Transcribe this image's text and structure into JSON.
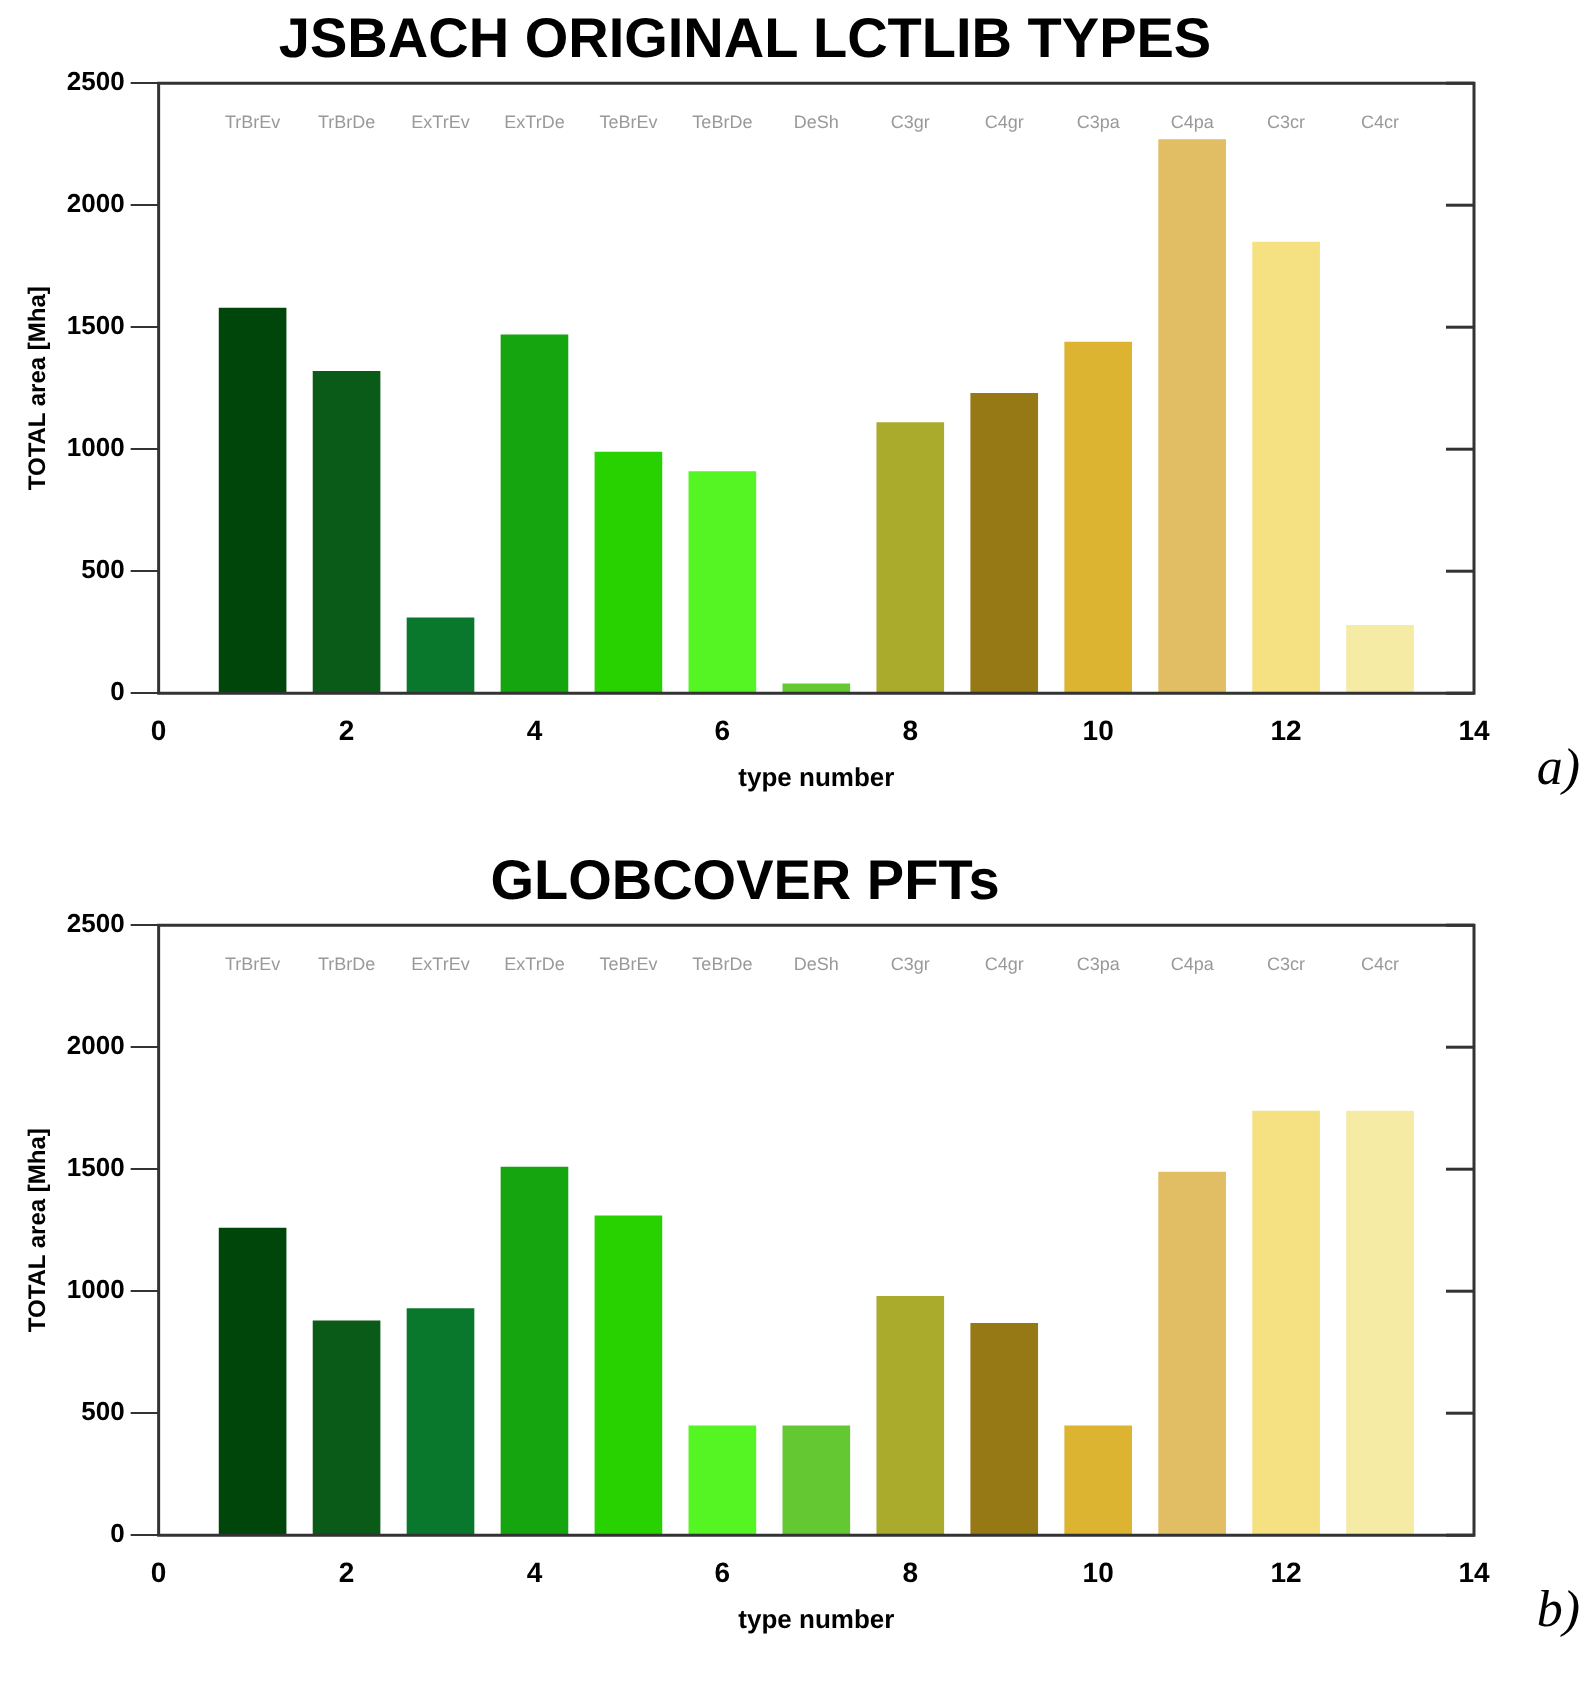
{
  "chart_data": [
    {
      "type": "bar",
      "title": "JSBACH ORIGINAL LCTLIB TYPES",
      "xlabel": "type number",
      "ylabel": "TOTAL area [Mha]",
      "x": [
        1,
        2,
        3,
        4,
        5,
        6,
        7,
        8,
        9,
        10,
        11,
        12,
        13
      ],
      "values": [
        1580,
        1320,
        310,
        1470,
        990,
        910,
        40,
        1110,
        1230,
        1440,
        2270,
        1850,
        280
      ],
      "colors": [
        "#00460a",
        "#0a5a18",
        "#0a782c",
        "#14a50f",
        "#28d200",
        "#55f523",
        "#64c832",
        "#aaaa2d",
        "#967814",
        "#dcb432",
        "#e1be64",
        "#f5e182",
        "#f5eba5"
      ],
      "xlim": [
        0,
        14
      ],
      "xticks": [
        0,
        2,
        4,
        6,
        8,
        10,
        12,
        14
      ],
      "ylim": [
        0,
        2500
      ],
      "yticks": [
        0,
        500,
        1000,
        1500,
        2000,
        2500
      ],
      "annotations": [
        "TrBrEv",
        "TrBrDe",
        "ExTrEv",
        "ExTrDe",
        "TeBrEv",
        "TeBrDe",
        "DeSh",
        "C3gr",
        "C4gr",
        "C3pa",
        "C4pa",
        "C3cr",
        "C4cr",
        "a)"
      ]
    },
    {
      "type": "bar",
      "title": "GLOBCOVER PFTs",
      "xlabel": "type number",
      "ylabel": "TOTAL area [Mha]",
      "x": [
        1,
        2,
        3,
        4,
        5,
        6,
        7,
        8,
        9,
        10,
        11,
        12,
        13
      ],
      "values": [
        1260,
        880,
        930,
        1510,
        1310,
        450,
        450,
        980,
        870,
        450,
        1490,
        1740,
        1740
      ],
      "colors": [
        "#00460a",
        "#0a5a18",
        "#0a782c",
        "#14a50f",
        "#28d200",
        "#55f523",
        "#64c832",
        "#aaaa2d",
        "#967814",
        "#dcb432",
        "#e1be64",
        "#f5e182",
        "#f5eba5"
      ],
      "xlim": [
        0,
        14
      ],
      "xticks": [
        0,
        2,
        4,
        6,
        8,
        10,
        12,
        14
      ],
      "ylim": [
        0,
        2500
      ],
      "yticks": [
        0,
        500,
        1000,
        1500,
        2000,
        2500
      ],
      "annotations": [
        "TrBrEv",
        "TrBrDe",
        "ExTrEv",
        "ExTrDe",
        "TeBrEv",
        "TeBrDe",
        "DeSh",
        "C3gr",
        "C4gr",
        "C3pa",
        "C4pa",
        "C3cr",
        "C4cr",
        "b)"
      ]
    }
  ]
}
